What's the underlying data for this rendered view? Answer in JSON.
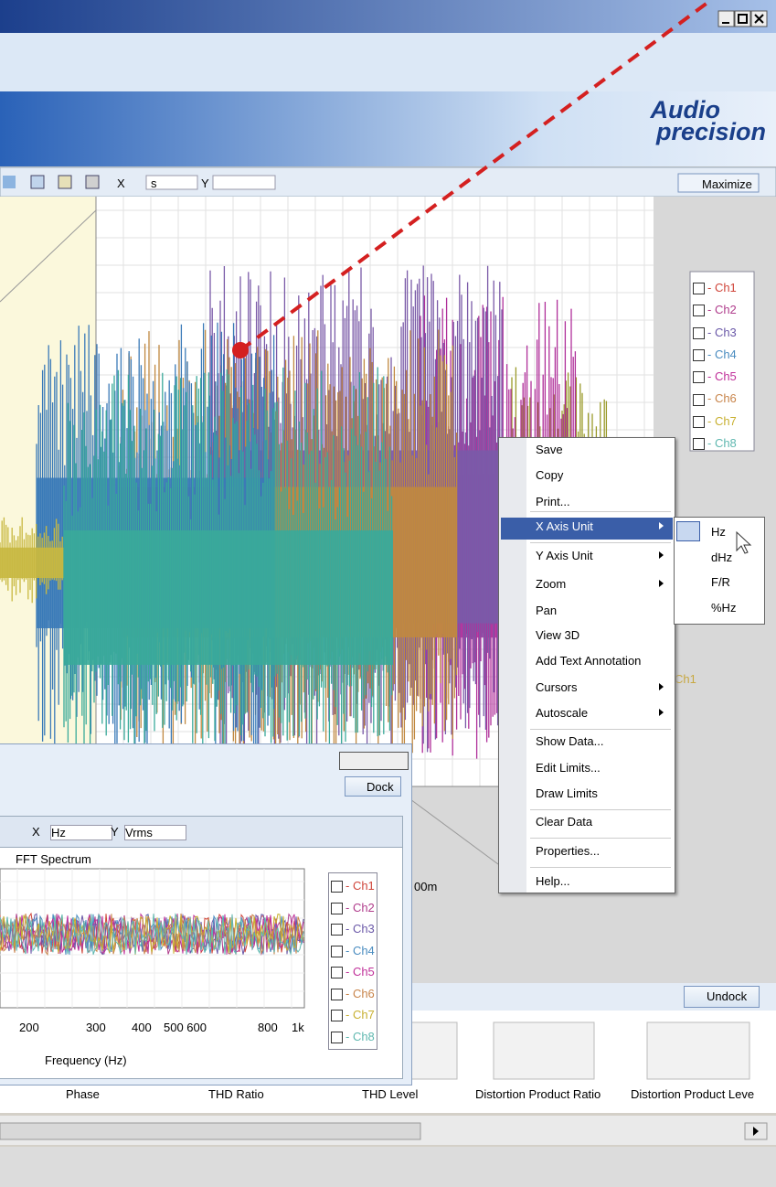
{
  "logo": {
    "line1": "Audio",
    "line2": "precision"
  },
  "main_graph": {
    "toolbar": {
      "x_label": "X",
      "x_unit": "s",
      "y_label": "Y"
    },
    "maximize": "Maximize",
    "legend": [
      "- Ch1",
      "- Ch2",
      "- Ch3",
      "- Ch4",
      "- Ch5",
      "- Ch6",
      "- Ch7",
      "- Ch8"
    ],
    "legend_colors": [
      "#d0453a",
      "#b03c8c",
      "#6a58a8",
      "#4a8cc0",
      "#c0309a",
      "#c8844a",
      "#c8b030",
      "#60b8b0"
    ],
    "partial_label": "Ch1",
    "partial_tick": "00m"
  },
  "context_menu": {
    "items": [
      {
        "label": "Save",
        "submenu": false
      },
      {
        "label": "Copy",
        "submenu": false
      },
      {
        "label": "Print...",
        "submenu": false
      },
      {
        "label": "X Axis Unit",
        "submenu": true
      },
      {
        "label": "Y Axis Unit",
        "submenu": true
      },
      {
        "label": "Zoom",
        "submenu": true
      },
      {
        "label": "Pan",
        "submenu": false
      },
      {
        "label": "View 3D",
        "submenu": false
      },
      {
        "label": "Add Text Annotation",
        "submenu": false
      },
      {
        "label": "Cursors",
        "submenu": true
      },
      {
        "label": "Autoscale",
        "submenu": true
      },
      {
        "label": "Show Data...",
        "submenu": false
      },
      {
        "label": "Edit Limits...",
        "submenu": false
      },
      {
        "label": "Draw Limits",
        "submenu": false
      },
      {
        "label": "Clear Data",
        "submenu": false
      },
      {
        "label": "Properties...",
        "submenu": false
      },
      {
        "label": "Help...",
        "submenu": false
      }
    ],
    "submenu": [
      "Hz",
      "dHz",
      "F/R",
      "%Hz"
    ]
  },
  "fft_window": {
    "dock": "Dock",
    "toolbar": {
      "x_label": "X",
      "x_unit": "Hz",
      "y_label": "Y",
      "y_unit": "Vrms"
    },
    "title": "FFT Spectrum",
    "legend": [
      "- Ch1",
      "- Ch2",
      "- Ch3",
      "- Ch4",
      "- Ch5",
      "- Ch6",
      "- Ch7",
      "- Ch8"
    ],
    "xticks": [
      "200",
      "300",
      "400",
      "500 600",
      "800",
      "1k"
    ],
    "xlabel": "Frequency (Hz)"
  },
  "undock": "Undock",
  "thumbnails": [
    "Phase",
    "THD Ratio",
    "THD Level",
    "Distortion Product Ratio",
    "Distortion Product Leve"
  ]
}
